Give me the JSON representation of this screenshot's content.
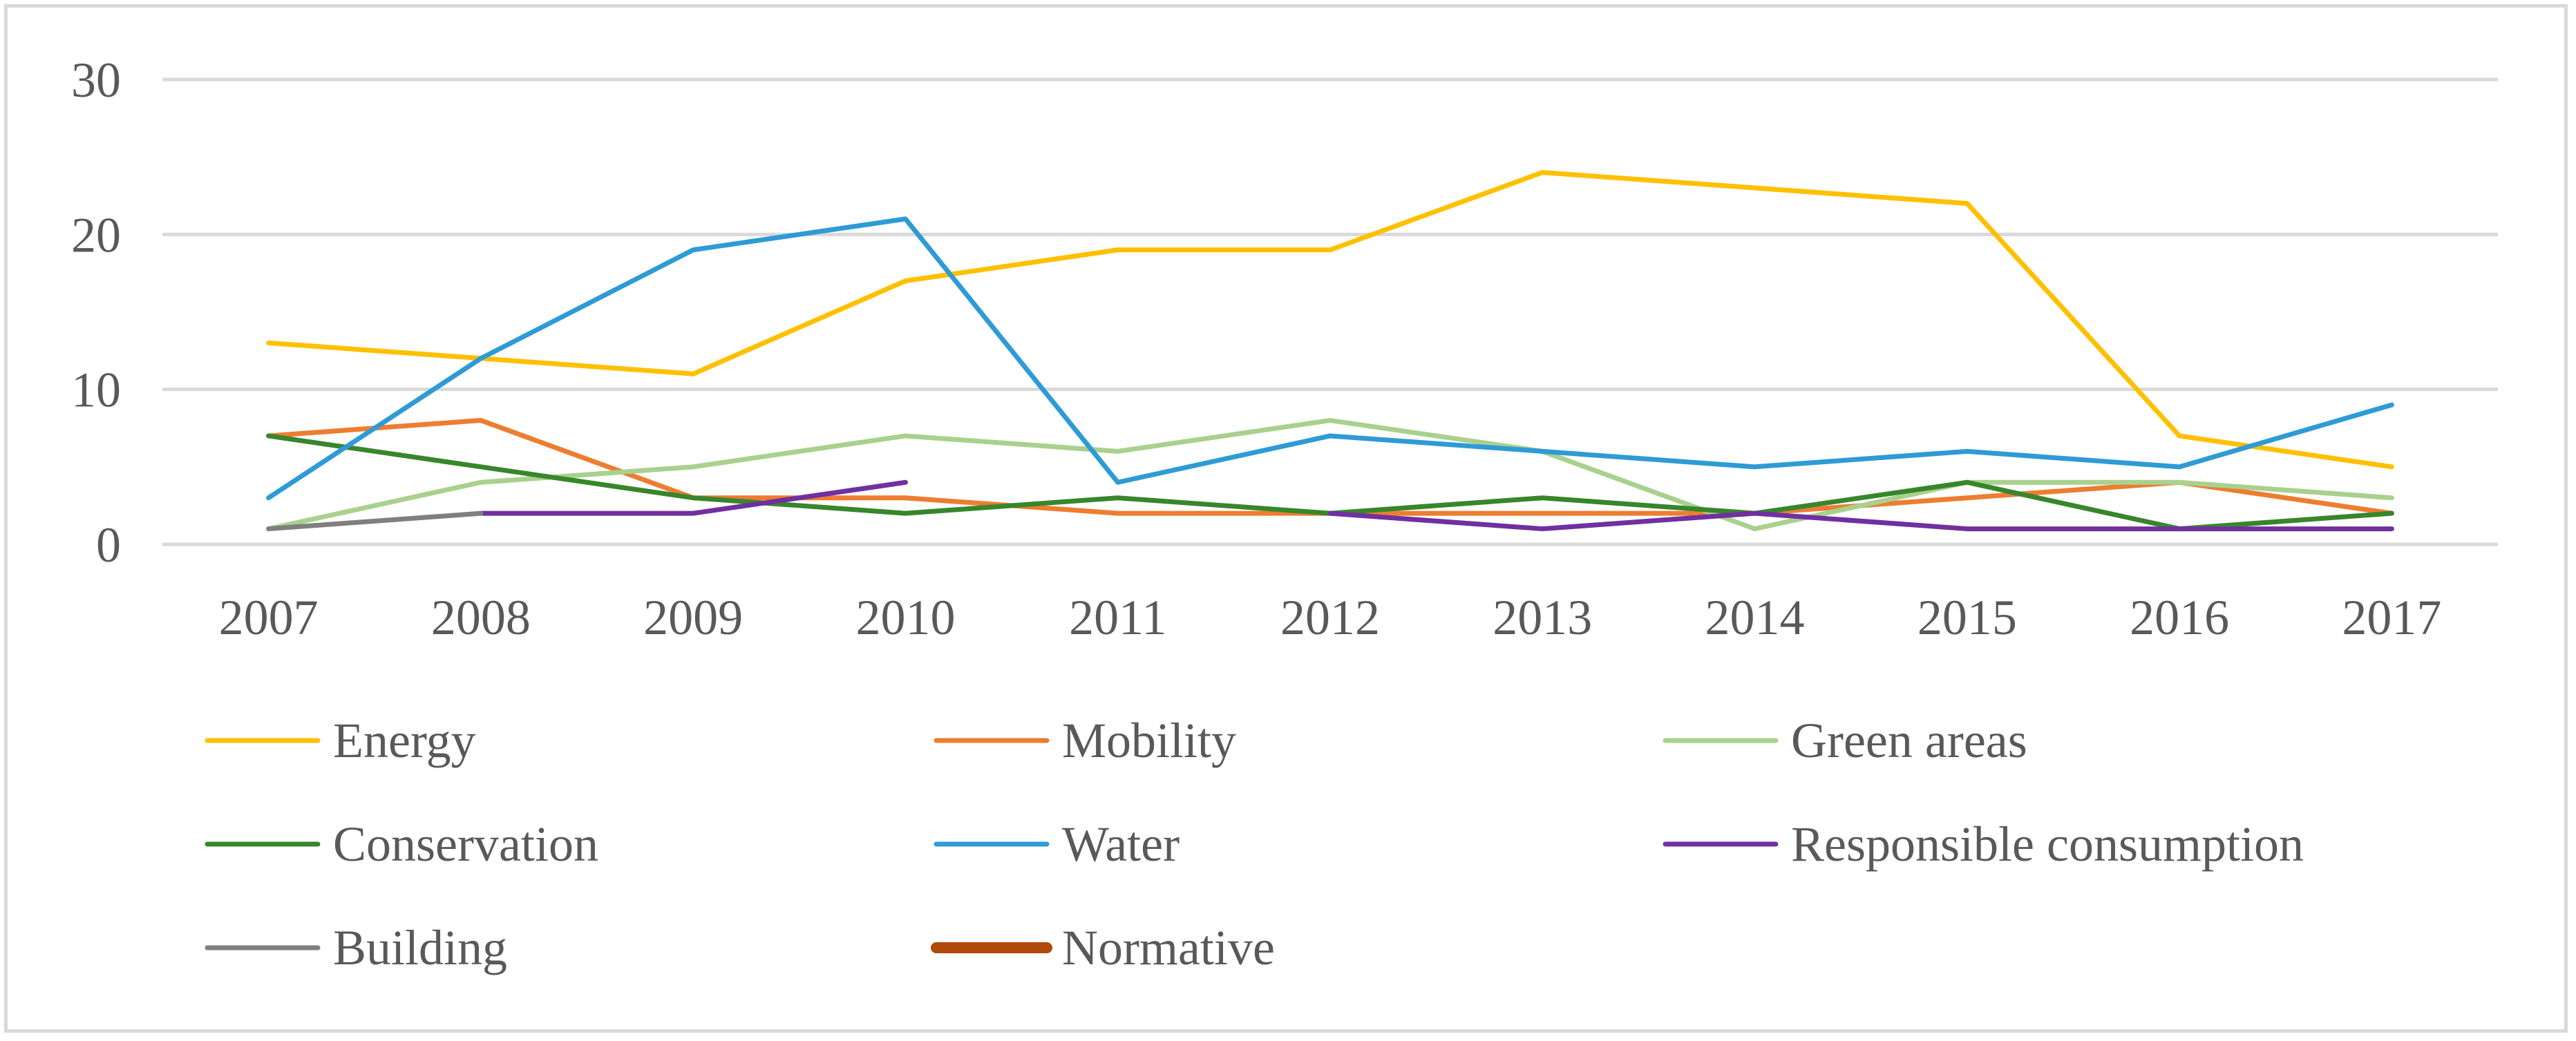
{
  "chart_data": {
    "type": "line",
    "title": "",
    "xlabel": "",
    "ylabel": "",
    "x": [
      "2007",
      "2008",
      "2009",
      "2010",
      "2011",
      "2012",
      "2013",
      "2014",
      "2015",
      "2016",
      "2017"
    ],
    "ylim": [
      0,
      30
    ],
    "yticks": [
      0,
      10,
      20,
      30
    ],
    "grid": true,
    "legend_position": "bottom",
    "series": [
      {
        "name": "Energy",
        "color": "#ffc000",
        "values": [
          13,
          12,
          11,
          17,
          19,
          19,
          24,
          23,
          22,
          7,
          5
        ]
      },
      {
        "name": "Mobility",
        "color": "#ed7d31",
        "values": [
          7,
          8,
          3,
          3,
          2,
          2,
          2,
          2,
          3,
          4,
          2
        ]
      },
      {
        "name": "Green areas",
        "color": "#a9d18e",
        "values": [
          1,
          4,
          5,
          7,
          6,
          8,
          6,
          1,
          4,
          4,
          3
        ]
      },
      {
        "name": "Conservation",
        "color": "#38862c",
        "values": [
          7,
          5,
          3,
          2,
          3,
          2,
          3,
          2,
          4,
          1,
          2
        ]
      },
      {
        "name": "Water",
        "color": "#2e9bd6",
        "values": [
          3,
          12,
          19,
          21,
          4,
          7,
          6,
          5,
          6,
          5,
          9
        ]
      },
      {
        "name": "Responsible consumption",
        "color": "#7030a0",
        "values": [
          null,
          2,
          2,
          4,
          null,
          2,
          1,
          2,
          1,
          1,
          1
        ]
      },
      {
        "name": "Building",
        "color": "#7f7f7f",
        "values": [
          1,
          2,
          null,
          null,
          null,
          null,
          null,
          null,
          null,
          null,
          null
        ]
      },
      {
        "name": "Normative",
        "color": "#b04a0a",
        "values": [
          null,
          null,
          null,
          null,
          null,
          null,
          null,
          null,
          null,
          null,
          null
        ]
      }
    ]
  }
}
